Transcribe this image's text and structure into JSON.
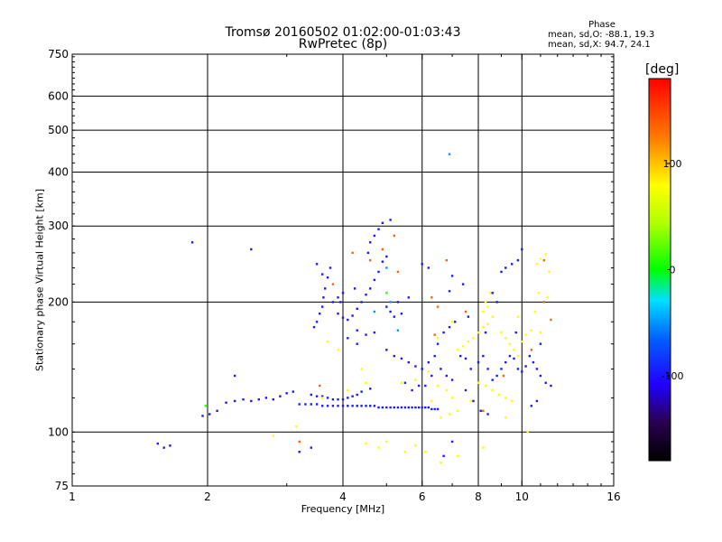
{
  "chart_data": {
    "type": "scatter",
    "title": "Tromsø 20160502 01:02:00-01:03:43",
    "subtitle": "RwPretec (8p)",
    "xlabel": "Frequency [MHz]",
    "ylabel": "Stationary phase Virtual Height [km]",
    "x_scale": "log",
    "y_scale": "log",
    "xlim": [
      1,
      16
    ],
    "ylim": [
      75,
      750
    ],
    "x_ticks": [
      1,
      2,
      4,
      6,
      8,
      10,
      16
    ],
    "y_ticks": [
      75,
      100,
      200,
      300,
      400,
      500,
      600,
      750
    ],
    "grid": true,
    "phase_header": "Phase",
    "phase_stats": [
      "mean, sd,O: -88.1, 19.3",
      "mean, sd,X:  94.7, 24.1"
    ],
    "colorbar": {
      "label": "[deg]",
      "range": [
        -180,
        180
      ],
      "ticks": [
        -100,
        0,
        100
      ]
    },
    "series": [
      {
        "mode": "O",
        "phase_deg": -120,
        "points": [
          [
            1.95,
            109
          ],
          [
            2.02,
            110
          ],
          [
            2.1,
            112
          ],
          [
            2.2,
            117
          ],
          [
            2.3,
            118
          ],
          [
            2.4,
            119
          ],
          [
            2.5,
            118
          ],
          [
            2.6,
            119
          ],
          [
            2.7,
            120
          ],
          [
            2.8,
            119
          ],
          [
            2.9,
            121
          ],
          [
            3.0,
            123
          ],
          [
            3.1,
            124
          ],
          [
            3.2,
            116
          ],
          [
            3.3,
            116
          ],
          [
            3.4,
            116
          ],
          [
            3.5,
            116
          ],
          [
            3.6,
            115
          ],
          [
            3.7,
            115
          ],
          [
            3.8,
            115
          ],
          [
            3.9,
            115
          ],
          [
            4.0,
            115
          ],
          [
            4.1,
            115
          ],
          [
            4.2,
            115
          ],
          [
            4.3,
            115
          ],
          [
            4.4,
            115
          ],
          [
            4.5,
            115
          ],
          [
            4.6,
            115
          ],
          [
            4.7,
            115
          ],
          [
            4.8,
            114
          ],
          [
            4.9,
            114
          ],
          [
            5.0,
            114
          ],
          [
            5.1,
            114
          ],
          [
            5.2,
            114
          ],
          [
            5.3,
            114
          ],
          [
            5.4,
            114
          ],
          [
            5.5,
            114
          ],
          [
            5.6,
            114
          ],
          [
            5.7,
            114
          ],
          [
            5.8,
            114
          ],
          [
            5.9,
            114
          ],
          [
            6.0,
            114
          ],
          [
            6.1,
            114
          ],
          [
            6.2,
            114
          ],
          [
            6.3,
            113
          ],
          [
            6.4,
            113
          ],
          [
            6.5,
            113
          ],
          [
            3.4,
            122
          ],
          [
            3.5,
            121
          ],
          [
            3.6,
            121
          ],
          [
            3.7,
            120
          ],
          [
            3.8,
            119
          ],
          [
            3.9,
            119
          ],
          [
            4.0,
            119
          ],
          [
            4.1,
            120
          ],
          [
            4.2,
            121
          ],
          [
            4.3,
            122
          ],
          [
            4.4,
            124
          ],
          [
            4.6,
            126
          ],
          [
            3.45,
            175
          ],
          [
            3.5,
            180
          ],
          [
            3.55,
            188
          ],
          [
            3.6,
            195
          ],
          [
            3.62,
            205
          ],
          [
            3.65,
            215
          ],
          [
            3.7,
            228
          ],
          [
            3.75,
            240
          ],
          [
            3.6,
            232
          ],
          [
            3.5,
            245
          ],
          [
            3.8,
            200
          ],
          [
            3.9,
            205
          ],
          [
            4.0,
            210
          ],
          [
            3.9,
            188
          ],
          [
            4.0,
            184
          ],
          [
            4.1,
            182
          ],
          [
            4.2,
            186
          ],
          [
            4.3,
            193
          ],
          [
            4.4,
            200
          ],
          [
            4.5,
            208
          ],
          [
            4.6,
            215
          ],
          [
            4.7,
            225
          ],
          [
            4.8,
            235
          ],
          [
            4.9,
            248
          ],
          [
            5.0,
            255
          ],
          [
            4.55,
            260
          ],
          [
            4.6,
            275
          ],
          [
            4.7,
            285
          ],
          [
            4.8,
            295
          ],
          [
            4.9,
            305
          ],
          [
            5.1,
            310
          ],
          [
            5.0,
            195
          ],
          [
            5.1,
            190
          ],
          [
            5.2,
            185
          ],
          [
            4.7,
            170
          ],
          [
            4.5,
            168
          ],
          [
            4.3,
            172
          ],
          [
            5.0,
            155
          ],
          [
            5.2,
            150
          ],
          [
            5.4,
            148
          ],
          [
            5.6,
            145
          ],
          [
            5.8,
            142
          ],
          [
            6.0,
            140
          ],
          [
            6.2,
            145
          ],
          [
            6.4,
            150
          ],
          [
            6.6,
            140
          ],
          [
            6.8,
            135
          ],
          [
            7.0,
            132
          ],
          [
            5.5,
            130
          ],
          [
            5.7,
            125
          ],
          [
            5.9,
            128
          ],
          [
            6.1,
            128
          ],
          [
            6.3,
            135
          ],
          [
            6.5,
            160
          ],
          [
            6.7,
            170
          ],
          [
            6.9,
            175
          ],
          [
            7.1,
            180
          ],
          [
            7.3,
            150
          ],
          [
            7.5,
            148
          ],
          [
            7.7,
            140
          ],
          [
            8.0,
            145
          ],
          [
            8.2,
            150
          ],
          [
            8.4,
            140
          ],
          [
            8.6,
            132
          ],
          [
            8.8,
            135
          ],
          [
            9.0,
            140
          ],
          [
            9.2,
            145
          ],
          [
            9.4,
            150
          ],
          [
            9.6,
            148
          ],
          [
            9.8,
            140
          ],
          [
            10.0,
            138
          ],
          [
            10.2,
            142
          ],
          [
            10.4,
            150
          ],
          [
            10.6,
            145
          ],
          [
            10.8,
            140
          ],
          [
            11.0,
            135
          ],
          [
            11.3,
            130
          ],
          [
            11.6,
            128
          ],
          [
            9.0,
            235
          ],
          [
            9.2,
            240
          ],
          [
            9.5,
            245
          ],
          [
            9.8,
            250
          ],
          [
            10.0,
            265
          ],
          [
            8.6,
            210
          ],
          [
            8.8,
            200
          ],
          [
            7.5,
            125
          ],
          [
            7.8,
            118
          ],
          [
            8.1,
            112
          ],
          [
            8.4,
            110
          ],
          [
            6.0,
            245
          ],
          [
            6.2,
            240
          ],
          [
            7.0,
            230
          ],
          [
            7.4,
            220
          ],
          [
            10.5,
            115
          ],
          [
            10.8,
            118
          ],
          [
            11.0,
            160
          ],
          [
            9.7,
            170
          ],
          [
            8.3,
            170
          ],
          [
            1.55,
            94
          ],
          [
            1.6,
            92
          ],
          [
            1.65,
            93
          ],
          [
            1.85,
            275
          ],
          [
            2.5,
            265
          ],
          [
            2.3,
            135
          ],
          [
            3.2,
            90
          ],
          [
            3.4,
            92
          ],
          [
            6.7,
            88
          ],
          [
            7.0,
            95
          ],
          [
            5.3,
            200
          ],
          [
            5.6,
            205
          ],
          [
            5.4,
            188
          ],
          [
            4.3,
            160
          ],
          [
            4.1,
            165
          ],
          [
            3.95,
            200
          ],
          [
            4.25,
            215
          ],
          [
            6.9,
            212
          ],
          [
            7.6,
            185
          ]
        ]
      },
      {
        "mode": "X",
        "phase_deg": 100,
        "points": [
          [
            7.2,
            155
          ],
          [
            7.4,
            158
          ],
          [
            7.6,
            162
          ],
          [
            7.8,
            165
          ],
          [
            8.0,
            170
          ],
          [
            8.2,
            175
          ],
          [
            8.4,
            178
          ],
          [
            8.6,
            185
          ],
          [
            8.2,
            190
          ],
          [
            8.4,
            195
          ],
          [
            8.0,
            130
          ],
          [
            8.3,
            128
          ],
          [
            8.6,
            125
          ],
          [
            8.9,
            122
          ],
          [
            9.2,
            120
          ],
          [
            9.5,
            118
          ],
          [
            7.7,
            118
          ],
          [
            7.2,
            112
          ],
          [
            6.9,
            110
          ],
          [
            6.6,
            108
          ],
          [
            9.0,
            170
          ],
          [
            9.2,
            165
          ],
          [
            9.4,
            160
          ],
          [
            9.6,
            155
          ],
          [
            9.8,
            150
          ],
          [
            10.0,
            162
          ],
          [
            10.2,
            168
          ],
          [
            10.5,
            172
          ],
          [
            11.0,
            170
          ],
          [
            7.0,
            120
          ],
          [
            6.8,
            125
          ],
          [
            6.5,
            128
          ],
          [
            5.4,
            130
          ],
          [
            5.8,
            132
          ],
          [
            6.2,
            138
          ],
          [
            4.4,
            140
          ],
          [
            4.5,
            130
          ],
          [
            3.9,
            155
          ],
          [
            3.7,
            162
          ],
          [
            10.8,
            245
          ],
          [
            11.0,
            252
          ],
          [
            11.3,
            258
          ],
          [
            11.5,
            235
          ],
          [
            10.9,
            210
          ],
          [
            11.4,
            205
          ],
          [
            8.3,
            200
          ],
          [
            8.5,
            210
          ],
          [
            5.0,
            95
          ],
          [
            4.5,
            94
          ],
          [
            4.8,
            92
          ],
          [
            5.5,
            90
          ],
          [
            5.8,
            93
          ],
          [
            6.1,
            90
          ],
          [
            6.6,
            85
          ],
          [
            7.2,
            88
          ],
          [
            8.2,
            92
          ],
          [
            9.2,
            108
          ],
          [
            10.3,
            100
          ],
          [
            4.1,
            125
          ],
          [
            3.6,
            120
          ],
          [
            3.15,
            103
          ],
          [
            2.8,
            98
          ],
          [
            7.0,
            180
          ],
          [
            9.8,
            185
          ],
          [
            10.7,
            190
          ],
          [
            6.3,
            118
          ],
          [
            6.5,
            165
          ]
        ]
      },
      {
        "mode": "X",
        "phase_deg": 150,
        "points": [
          [
            4.2,
            260
          ],
          [
            4.6,
            250
          ],
          [
            4.9,
            265
          ],
          [
            5.3,
            235
          ],
          [
            3.8,
            220
          ],
          [
            6.8,
            250
          ],
          [
            6.3,
            205
          ],
          [
            6.5,
            195
          ],
          [
            7.5,
            190
          ],
          [
            11.2,
            250
          ],
          [
            11.2,
            200
          ],
          [
            11.6,
            182
          ],
          [
            3.55,
            128
          ],
          [
            3.2,
            95
          ],
          [
            8.2,
            112
          ],
          [
            9.1,
            135
          ],
          [
            10.5,
            155
          ],
          [
            6.4,
            168
          ],
          [
            5.2,
            285
          ]
        ]
      },
      {
        "mode": "mixed",
        "phase_deg": 10,
        "points": [
          [
            1.98,
            115
          ],
          [
            5.0,
            210
          ]
        ]
      },
      {
        "mode": "mixed",
        "phase_deg": -60,
        "points": [
          [
            6.9,
            440
          ],
          [
            5.1,
            200
          ],
          [
            4.7,
            190
          ],
          [
            5.3,
            172
          ],
          [
            5.0,
            240
          ]
        ]
      }
    ]
  }
}
